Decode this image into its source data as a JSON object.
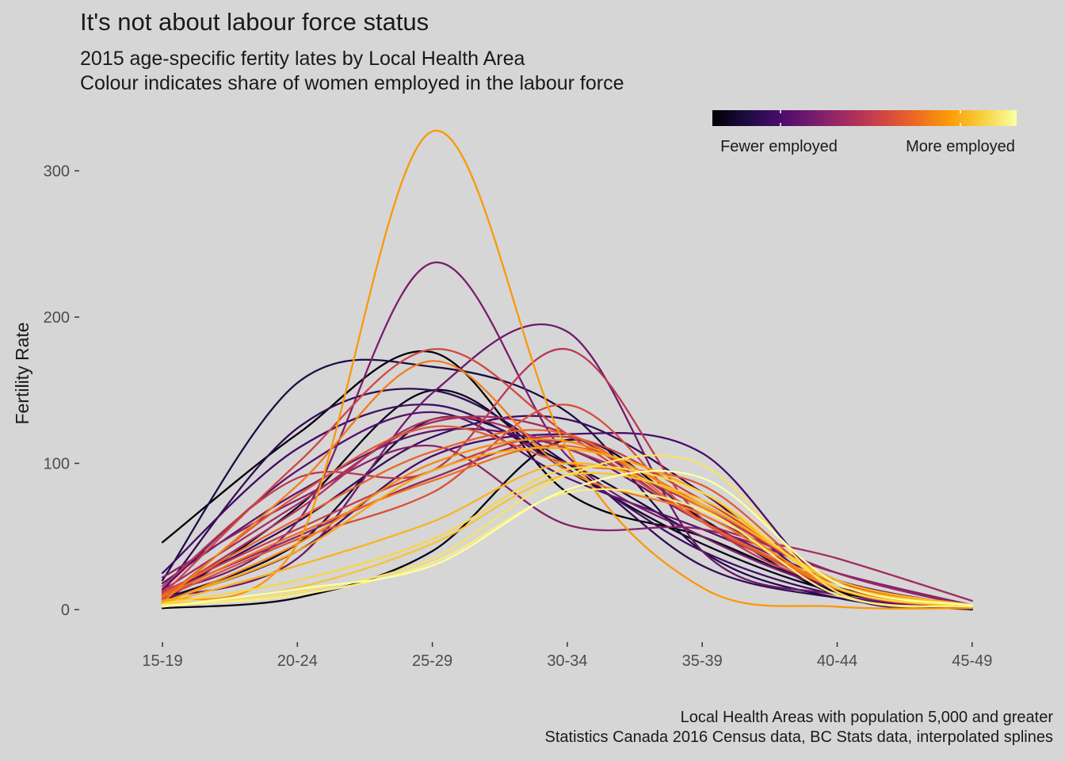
{
  "header": {
    "title": "It's not about labour force status",
    "subtitle_line1": "2015 age-specific fertity lates by Local Health Area",
    "subtitle_line2": "Colour indicates share of women employed in the labour force"
  },
  "caption": {
    "line1": "Local Health Areas with population 5,000 and greater",
    "line2": "Statistics Canada 2016 Census data, BC Stats data, interpolated splines"
  },
  "legend": {
    "low_label": "Fewer employed",
    "high_label": "More employed",
    "colors": [
      "#000004",
      "#1b0c41",
      "#4a0c6b",
      "#781c6d",
      "#a52c60",
      "#cf4446",
      "#ed6925",
      "#fb9b06",
      "#f7d13d",
      "#fcffa4"
    ]
  },
  "chart_data": {
    "type": "line",
    "title": "",
    "xlabel": "",
    "ylabel": "Fertility Rate",
    "categories": [
      "15-19",
      "20-24",
      "25-29",
      "30-34",
      "35-39",
      "40-44",
      "45-49"
    ],
    "y_ticks": [
      0,
      100,
      200,
      300
    ],
    "ylim": [
      -15,
      330
    ],
    "grid": false,
    "legend_position": "top-right",
    "color_scale": "inferno",
    "series": [
      {
        "employment_share": 0.0,
        "values": [
          46,
          120,
          176,
          80,
          50,
          13,
          2
        ]
      },
      {
        "employment_share": 0.03,
        "values": [
          1,
          8,
          40,
          116,
          62,
          10,
          1
        ]
      },
      {
        "employment_share": 0.05,
        "values": [
          5,
          70,
          150,
          95,
          45,
          12,
          1
        ]
      },
      {
        "employment_share": 0.08,
        "values": [
          7,
          45,
          130,
          100,
          50,
          15,
          2
        ]
      },
      {
        "employment_share": 0.12,
        "values": [
          20,
          155,
          166,
          135,
          40,
          8,
          0
        ]
      },
      {
        "employment_share": 0.16,
        "values": [
          12,
          124,
          150,
          100,
          30,
          8,
          1
        ]
      },
      {
        "employment_share": 0.18,
        "values": [
          10,
          60,
          118,
          130,
          80,
          12,
          1
        ]
      },
      {
        "employment_share": 0.2,
        "values": [
          25,
          110,
          140,
          96,
          40,
          10,
          1
        ]
      },
      {
        "employment_share": 0.22,
        "values": [
          6,
          40,
          105,
          120,
          107,
          12,
          2
        ]
      },
      {
        "employment_share": 0.25,
        "values": [
          14,
          95,
          135,
          90,
          55,
          18,
          2
        ]
      },
      {
        "employment_share": 0.28,
        "values": [
          18,
          80,
          122,
          110,
          60,
          20,
          2
        ]
      },
      {
        "employment_share": 0.31,
        "values": [
          8,
          35,
          148,
          190,
          40,
          10,
          1
        ]
      },
      {
        "employment_share": 0.34,
        "values": [
          10,
          60,
          237,
          105,
          50,
          14,
          2
        ]
      },
      {
        "employment_share": 0.37,
        "values": [
          22,
          75,
          112,
          58,
          55,
          25,
          3
        ]
      },
      {
        "employment_share": 0.4,
        "values": [
          11,
          50,
          90,
          115,
          65,
          25,
          2
        ]
      },
      {
        "employment_share": 0.44,
        "values": [
          13,
          72,
          128,
          120,
          60,
          35,
          6
        ]
      },
      {
        "employment_share": 0.47,
        "values": [
          9,
          68,
          130,
          110,
          70,
          20,
          2
        ]
      },
      {
        "employment_share": 0.5,
        "values": [
          16,
          90,
          95,
          178,
          62,
          15,
          2
        ]
      },
      {
        "employment_share": 0.53,
        "values": [
          12,
          55,
          95,
          118,
          75,
          20,
          2
        ]
      },
      {
        "employment_share": 0.56,
        "values": [
          10,
          100,
          178,
          120,
          60,
          15,
          2
        ]
      },
      {
        "employment_share": 0.59,
        "values": [
          8,
          48,
          80,
          140,
          60,
          18,
          2
        ]
      },
      {
        "employment_share": 0.62,
        "values": [
          7,
          78,
          125,
          100,
          85,
          15,
          2
        ]
      },
      {
        "employment_share": 0.65,
        "values": [
          10,
          62,
          108,
          120,
          60,
          18,
          2
        ]
      },
      {
        "employment_share": 0.68,
        "values": [
          9,
          52,
          88,
          112,
          72,
          20,
          2
        ]
      },
      {
        "employment_share": 0.71,
        "values": [
          5,
          85,
          170,
          95,
          65,
          14,
          2
        ]
      },
      {
        "employment_share": 0.74,
        "values": [
          4,
          45,
          100,
          115,
          70,
          15,
          2
        ]
      },
      {
        "employment_share": 0.77,
        "values": [
          6,
          45,
          327,
          110,
          15,
          2,
          1
        ]
      },
      {
        "employment_share": 0.8,
        "values": [
          5,
          40,
          95,
          110,
          80,
          15,
          2
        ]
      },
      {
        "employment_share": 0.83,
        "values": [
          4,
          30,
          60,
          100,
          72,
          20,
          3
        ]
      },
      {
        "employment_share": 0.86,
        "values": [
          3,
          15,
          45,
          92,
          75,
          18,
          3
        ]
      },
      {
        "employment_share": 0.9,
        "values": [
          4,
          20,
          48,
          96,
          80,
          15,
          3
        ]
      },
      {
        "employment_share": 0.93,
        "values": [
          2,
          12,
          35,
          92,
          99,
          12,
          3
        ]
      },
      {
        "employment_share": 0.96,
        "values": [
          3,
          10,
          32,
          80,
          68,
          10,
          2
        ]
      },
      {
        "employment_share": 1.0,
        "values": [
          2,
          14,
          30,
          82,
          90,
          18,
          3
        ]
      }
    ]
  }
}
